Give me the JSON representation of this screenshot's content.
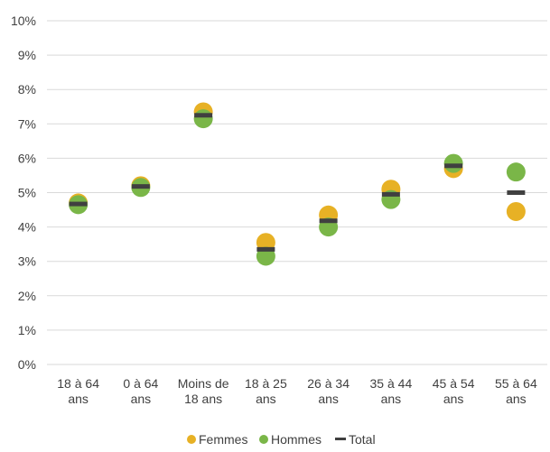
{
  "chart_data": {
    "type": "scatter",
    "categories": [
      [
        "18 à 64",
        "ans"
      ],
      [
        "0 à 64",
        "ans"
      ],
      [
        "Moins de",
        "18 ans"
      ],
      [
        "18 à 25",
        "ans"
      ],
      [
        "26 à 34",
        "ans"
      ],
      [
        "35 à 44",
        "ans"
      ],
      [
        "45 à 54",
        "ans"
      ],
      [
        "55 à 64",
        "ans"
      ]
    ],
    "series": [
      {
        "name": "Femmes",
        "marker": "circle",
        "color": "#E7B125",
        "values": [
          4.7,
          5.2,
          7.35,
          3.55,
          4.35,
          5.1,
          5.7,
          4.45
        ]
      },
      {
        "name": "Hommes",
        "marker": "circle",
        "color": "#7AB648",
        "values": [
          4.65,
          5.15,
          7.15,
          3.15,
          4.0,
          4.8,
          5.85,
          5.6
        ]
      },
      {
        "name": "Total",
        "marker": "dash",
        "color": "#404040",
        "values": [
          4.67,
          5.18,
          7.25,
          3.35,
          4.18,
          4.95,
          5.78,
          5.0
        ]
      }
    ],
    "yticks": [
      "0%",
      "1%",
      "2%",
      "3%",
      "4%",
      "5%",
      "6%",
      "7%",
      "8%",
      "9%",
      "10%"
    ],
    "ylim": [
      0,
      10
    ],
    "grid": true,
    "legend_position": "bottom"
  }
}
